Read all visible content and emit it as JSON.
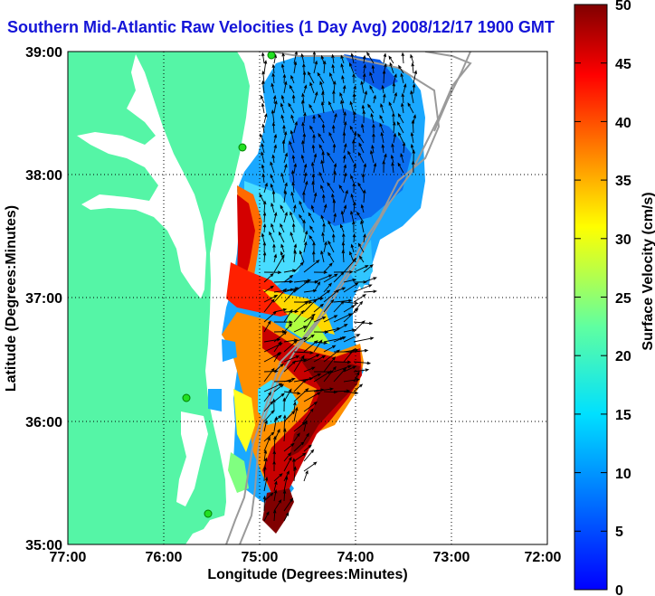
{
  "title": "Southern Mid-Atlantic Raw Velocities (1 Day Avg) 2008/12/17 1900 GMT",
  "axes": {
    "xlabel": "Longitude (Degrees:Minutes)",
    "ylabel": "Latitude (Degrees:Minutes)",
    "x_ticks": [
      "77:00",
      "76:00",
      "75:00",
      "74:00",
      "73:00",
      "72:00"
    ],
    "y_ticks": [
      "39:00",
      "38:00",
      "37:00",
      "36:00",
      "35:00"
    ],
    "x_range": [
      -77,
      -72
    ],
    "y_range": [
      35,
      39
    ]
  },
  "colorbar": {
    "label": "Surface Velocity (cm/s)",
    "ticks": [
      "50",
      "45",
      "40",
      "35",
      "30",
      "25",
      "20",
      "15",
      "10",
      "5",
      "0"
    ],
    "range": [
      0,
      50
    ],
    "colormap": "jet"
  },
  "colors": {
    "land": "#55f5a6",
    "title": "#1414d8",
    "station": "#22e022"
  }
}
